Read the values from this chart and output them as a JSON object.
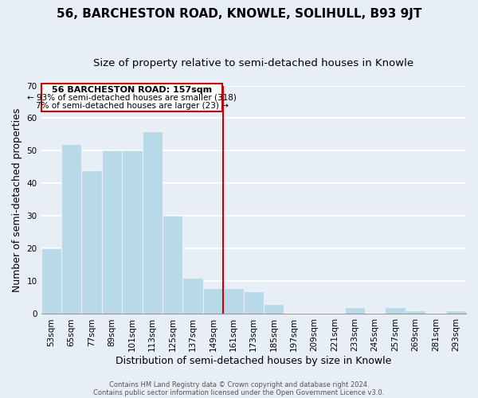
{
  "title": "56, BARCHESTON ROAD, KNOWLE, SOLIHULL, B93 9JT",
  "subtitle": "Size of property relative to semi-detached houses in Knowle",
  "xlabel": "Distribution of semi-detached houses by size in Knowle",
  "ylabel": "Number of semi-detached properties",
  "bins": [
    "53sqm",
    "65sqm",
    "77sqm",
    "89sqm",
    "101sqm",
    "113sqm",
    "125sqm",
    "137sqm",
    "149sqm",
    "161sqm",
    "173sqm",
    "185sqm",
    "197sqm",
    "209sqm",
    "221sqm",
    "233sqm",
    "245sqm",
    "257sqm",
    "269sqm",
    "281sqm",
    "293sqm"
  ],
  "values": [
    20,
    52,
    44,
    50,
    50,
    56,
    30,
    11,
    8,
    8,
    7,
    3,
    0,
    0,
    0,
    2,
    0,
    2,
    1,
    0,
    1
  ],
  "bar_color": "#b8d9e8",
  "highlight_line_color": "#cc0000",
  "ylim": [
    0,
    70
  ],
  "yticks": [
    0,
    10,
    20,
    30,
    40,
    50,
    60,
    70
  ],
  "annotation_title": "56 BARCHESTON ROAD: 157sqm",
  "annotation_line1": "← 93% of semi-detached houses are smaller (318)",
  "annotation_line2": "7% of semi-detached houses are larger (23) →",
  "annotation_box_color": "#ffffff",
  "annotation_box_edge": "#cc0000",
  "footer_line1": "Contains HM Land Registry data © Crown copyright and database right 2024.",
  "footer_line2": "Contains public sector information licensed under the Open Government Licence v3.0.",
  "background_color": "#e8eef5",
  "grid_color": "#ffffff",
  "title_fontsize": 11,
  "subtitle_fontsize": 9.5,
  "axis_label_fontsize": 9,
  "tick_fontsize": 7.5,
  "footer_fontsize": 6,
  "highlight_bar_index": 9
}
